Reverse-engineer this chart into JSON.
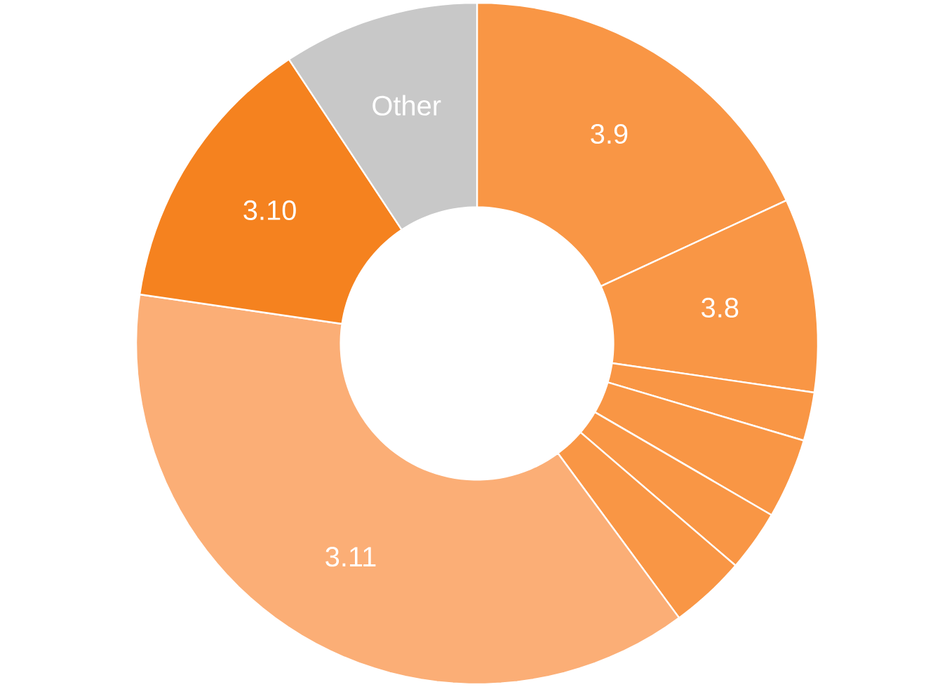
{
  "chart_data": {
    "type": "donut",
    "categories": [
      "3.9",
      "3.8",
      null,
      null,
      null,
      null,
      "3.11",
      "3.10",
      "Other"
    ],
    "values": [
      18.1,
      9.2,
      2.3,
      3.8,
      2.9,
      3.6,
      37.4,
      13.4,
      9.3
    ],
    "colors": [
      "#f99645",
      "#f99645",
      "#f99645",
      "#f99645",
      "#f99645",
      "#f99645",
      "#fbae76",
      "#f5821f",
      "#c8c8c8"
    ]
  }
}
